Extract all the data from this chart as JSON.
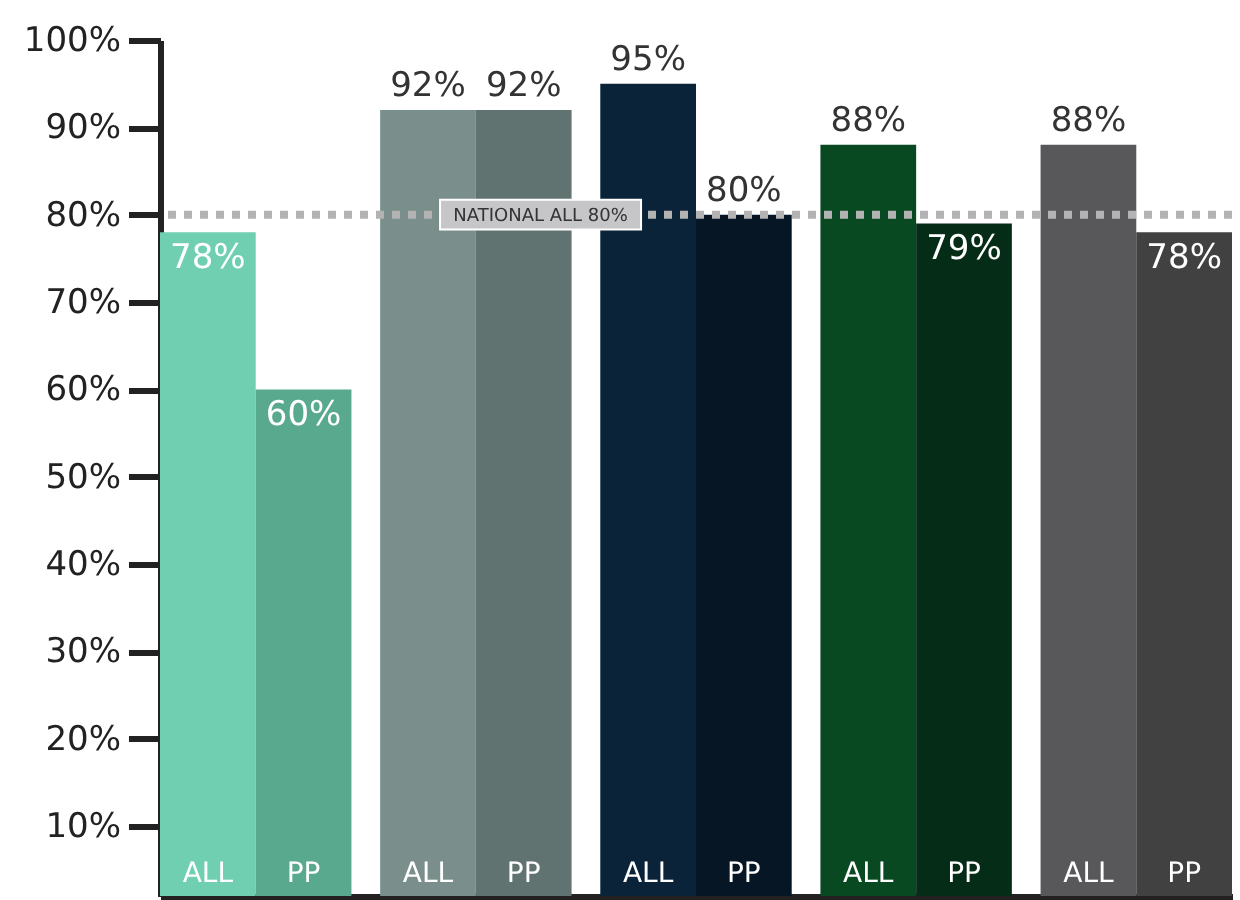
{
  "chart_data": {
    "type": "bar",
    "categories": [
      "ALL",
      "PP",
      "ALL",
      "PP",
      "ALL",
      "PP",
      "ALL",
      "PP",
      "ALL",
      "PP"
    ],
    "values": [
      78,
      60,
      92,
      92,
      95,
      80,
      88,
      79,
      88,
      78
    ],
    "colors": [
      "#6fcfb0",
      "#58a98e",
      "#7a8f8b",
      "#617370",
      "#0a2338",
      "#061624",
      "#084922",
      "#052c16",
      "#58585a",
      "#414141"
    ],
    "value_labels": [
      "78%",
      "60%",
      "92%",
      "92%",
      "95%",
      "80%",
      "88%",
      "79%",
      "88%",
      "78%"
    ],
    "ylim": [
      2,
      100
    ],
    "yticks": [
      {
        "value": 10,
        "label": "10%"
      },
      {
        "value": 20,
        "label": "20%"
      },
      {
        "value": 30,
        "label": "30%"
      },
      {
        "value": 40,
        "label": "40%"
      },
      {
        "value": 50,
        "label": "50%"
      },
      {
        "value": 60,
        "label": "60%"
      },
      {
        "value": 70,
        "label": "70%"
      },
      {
        "value": 80,
        "label": "80%"
      },
      {
        "value": 90,
        "label": "90%"
      },
      {
        "value": 100,
        "label": "100%"
      }
    ],
    "ref_lines": [
      {
        "axis": "y",
        "value": 80,
        "label": "NATIONAL ALL 80%",
        "color": "#b3b3b3",
        "line_style": "dotted"
      }
    ],
    "grid": false
  }
}
